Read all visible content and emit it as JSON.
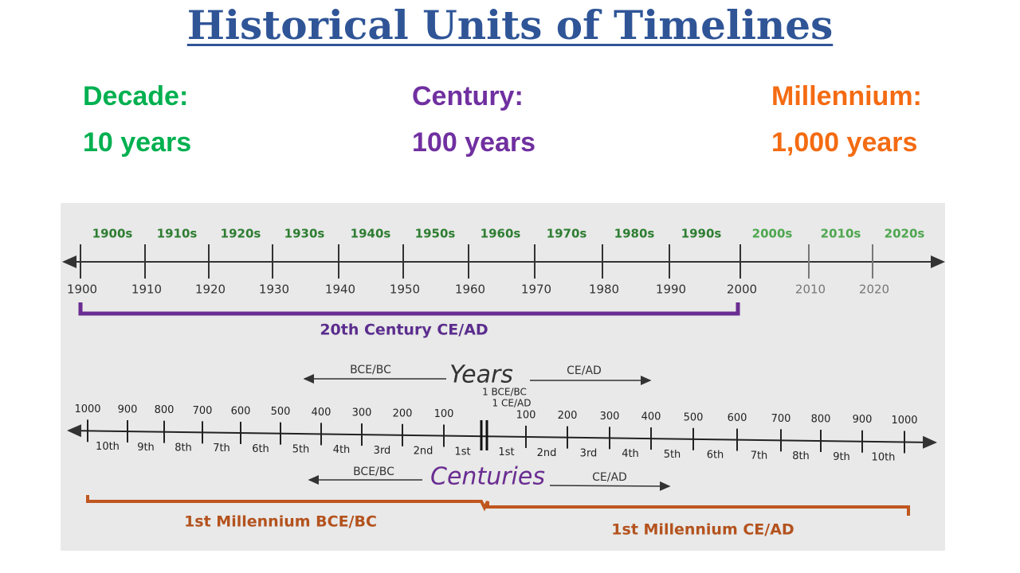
{
  "header": {
    "title": "Historical Units of Timelines"
  },
  "units": [
    {
      "label": "Decade:",
      "value": "10 years",
      "color": "#00b050"
    },
    {
      "label": "Century:",
      "value": "100 years",
      "color": "#7030a0"
    },
    {
      "label": "Millennium:",
      "value": "1,000 years",
      "color": "#f46b12"
    }
  ],
  "decade_timeline": {
    "decades": [
      "1900s",
      "1910s",
      "1920s",
      "1930s",
      "1940s",
      "1950s",
      "1960s",
      "1970s",
      "1980s",
      "1990s",
      "2000s",
      "2010s",
      "2020s"
    ],
    "years": [
      "1900",
      "1910",
      "1920",
      "1930",
      "1940",
      "1950",
      "1960",
      "1970",
      "1980",
      "1990",
      "2000",
      "2010",
      "2020"
    ],
    "century_label": "20th Century CE/AD"
  },
  "era_timeline": {
    "years_heading": "Years",
    "years_bce": "BCE/BC",
    "years_ce": "CE/AD",
    "marker_bce": "1 BCE/BC",
    "marker_ce": "1 CE/AD",
    "bce_years": [
      "1000",
      "900",
      "800",
      "700",
      "600",
      "500",
      "400",
      "300",
      "200",
      "100"
    ],
    "ce_years": [
      "100",
      "200",
      "300",
      "400",
      "500",
      "600",
      "700",
      "800",
      "900",
      "1000"
    ],
    "bce_centuries": [
      "10th",
      "9th",
      "8th",
      "7th",
      "6th",
      "5th",
      "4th",
      "3rd",
      "2nd",
      "1st"
    ],
    "ce_centuries": [
      "1st",
      "2nd",
      "3rd",
      "4th",
      "5th",
      "6th",
      "7th",
      "8th",
      "9th",
      "10th"
    ],
    "centuries_heading": "Centuries",
    "centuries_bce": "BCE/BC",
    "centuries_ce": "CE/AD",
    "millennium_bce": "1st Millennium BCE/BC",
    "millennium_ce": "1st Millennium CE/AD"
  }
}
